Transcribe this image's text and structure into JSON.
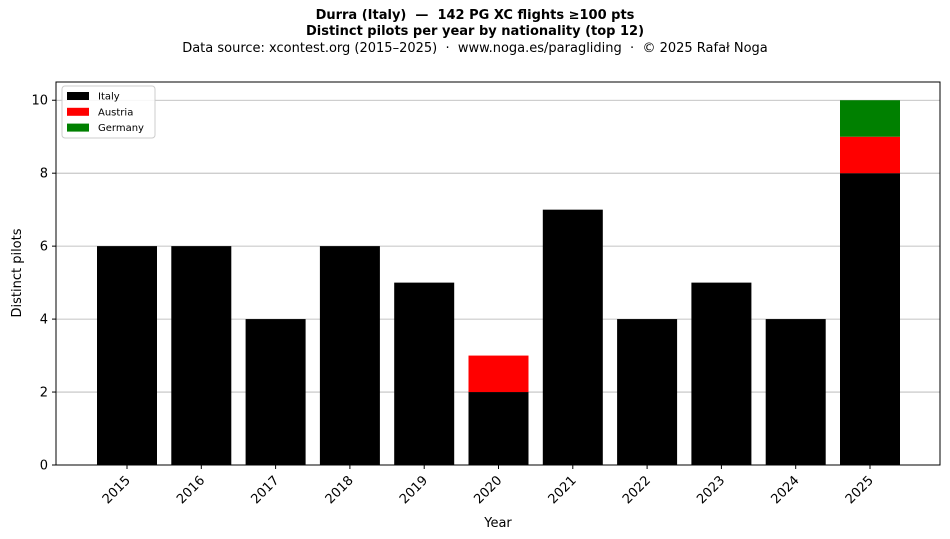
{
  "chart_data": {
    "type": "bar",
    "stacked": true,
    "title": "Durra (Italy)  —  142 PG XC flights ≥100 pts",
    "title2": "Distinct pilots per year by nationality (top 12)",
    "subtitle": "Data source: xcontest.org (2015–2025)  ·  www.noga.es/paragliding  ·  © 2025 Rafał Noga",
    "xlabel": "Year",
    "ylabel": "Distinct pilots",
    "ylim": [
      0,
      10.5
    ],
    "yticks": [
      0,
      2,
      4,
      6,
      8,
      10
    ],
    "grid": "y",
    "legend_position": "top-left",
    "categories": [
      "2015",
      "2016",
      "2017",
      "2018",
      "2019",
      "2020",
      "2021",
      "2022",
      "2023",
      "2024",
      "2025"
    ],
    "series": [
      {
        "name": "Italy",
        "color": "#000000",
        "values": [
          6,
          6,
          4,
          6,
          5,
          2,
          7,
          4,
          5,
          4,
          8
        ]
      },
      {
        "name": "Austria",
        "color": "#ff0000",
        "values": [
          0,
          0,
          0,
          0,
          0,
          1,
          0,
          0,
          0,
          0,
          1
        ]
      },
      {
        "name": "Germany",
        "color": "#008000",
        "values": [
          0,
          0,
          0,
          0,
          0,
          0,
          0,
          0,
          0,
          0,
          1
        ]
      }
    ]
  }
}
